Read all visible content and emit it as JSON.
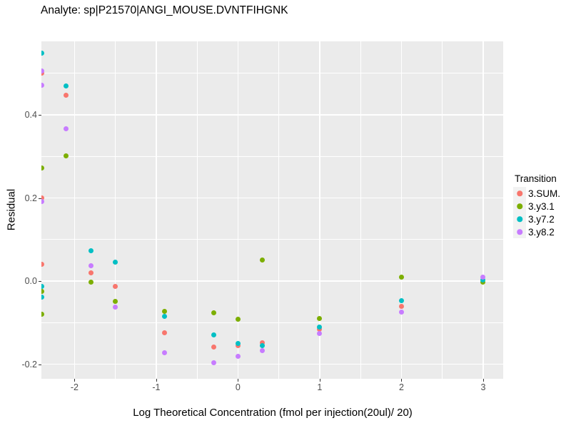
{
  "title": "Analyte: sp|P21570|ANGI_MOUSE.DVNTFIHGNK",
  "colors": {
    "panel_background": "#EBEBEB",
    "gridline": "#FFFFFF",
    "tick_label": "#4D4D4D",
    "tick_mark": "#333333",
    "legend_key_background": "#F2F2F2",
    "series_red": "#F8766D",
    "series_green": "#7CAE00",
    "series_teal": "#00BFC4",
    "series_purple": "#C77CFF"
  },
  "chart_data": {
    "type": "scatter",
    "title": "Analyte: sp|P21570|ANGI_MOUSE.DVNTFIHGNK",
    "xlabel": "Log Theoretical Concentration (fmol per injection(20ul)/ 20)",
    "ylabel": "Residual",
    "xlim": [
      -2.405,
      3.245
    ],
    "ylim": [
      -0.235,
      0.577
    ],
    "grid": true,
    "legend_title": "Transition",
    "legend_position": "right",
    "x_ticks": {
      "values": [
        -2,
        -1,
        0,
        1,
        2,
        3
      ],
      "labels": [
        "-2",
        "-1",
        "0",
        "1",
        "2",
        "3"
      ]
    },
    "y_ticks": {
      "values": [
        -0.2,
        0.0,
        0.2,
        0.4
      ],
      "labels": [
        "-0.2",
        "0.0",
        "0.2",
        "0.4"
      ]
    },
    "x_minor_ticks": [
      -1.5,
      -0.5,
      0.5,
      1.5,
      2.5
    ],
    "y_minor_ticks": [
      -0.1,
      0.1,
      0.3,
      0.5
    ],
    "series": [
      {
        "name": "3.SUM.",
        "color": "#F8766D",
        "points": [
          [
            -2.4,
            0.5
          ],
          [
            -2.4,
            0.2
          ],
          [
            -2.4,
            0.04
          ],
          [
            -2.1,
            0.447
          ],
          [
            -1.8,
            0.02
          ],
          [
            -1.5,
            -0.013
          ],
          [
            -0.9,
            -0.125
          ],
          [
            -0.3,
            -0.158
          ],
          [
            0,
            -0.156
          ],
          [
            0.3,
            -0.149
          ],
          [
            1,
            -0.116
          ],
          [
            2,
            -0.061
          ]
        ]
      },
      {
        "name": "3.y3.1",
        "color": "#7CAE00",
        "points": [
          [
            -2.4,
            0.273
          ],
          [
            -2.4,
            -0.025
          ],
          [
            -2.4,
            -0.079
          ],
          [
            -2.1,
            0.302
          ],
          [
            -1.8,
            -0.003
          ],
          [
            -1.5,
            -0.049
          ],
          [
            -0.9,
            -0.073
          ],
          [
            -0.3,
            -0.077
          ],
          [
            0,
            -0.092
          ],
          [
            0.3,
            0.051
          ],
          [
            1,
            -0.09
          ],
          [
            2,
            0.009
          ],
          [
            3,
            -0.003
          ]
        ]
      },
      {
        "name": "3.y7.2",
        "color": "#00BFC4",
        "points": [
          [
            -2.4,
            0.548
          ],
          [
            -2.4,
            -0.012
          ],
          [
            -2.4,
            -0.038
          ],
          [
            -2.1,
            0.469
          ],
          [
            -1.8,
            0.074
          ],
          [
            -1.5,
            0.046
          ],
          [
            -0.9,
            -0.084
          ],
          [
            -0.3,
            -0.129
          ],
          [
            0,
            -0.15
          ],
          [
            0.3,
            -0.155
          ],
          [
            1,
            -0.11
          ],
          [
            2,
            -0.047
          ],
          [
            3,
            0.003
          ]
        ]
      },
      {
        "name": "3.y8.2",
        "color": "#C77CFF",
        "points": [
          [
            -2.4,
            0.506
          ],
          [
            -2.4,
            0.471
          ],
          [
            -2.4,
            0.192
          ],
          [
            -2.1,
            0.366
          ],
          [
            -1.8,
            0.037
          ],
          [
            -1.5,
            -0.063
          ],
          [
            -0.9,
            -0.172
          ],
          [
            -0.3,
            -0.196
          ],
          [
            0,
            -0.181
          ],
          [
            0.3,
            -0.167
          ],
          [
            1,
            -0.126
          ],
          [
            2,
            -0.074
          ],
          [
            3,
            0.01
          ]
        ]
      }
    ]
  }
}
